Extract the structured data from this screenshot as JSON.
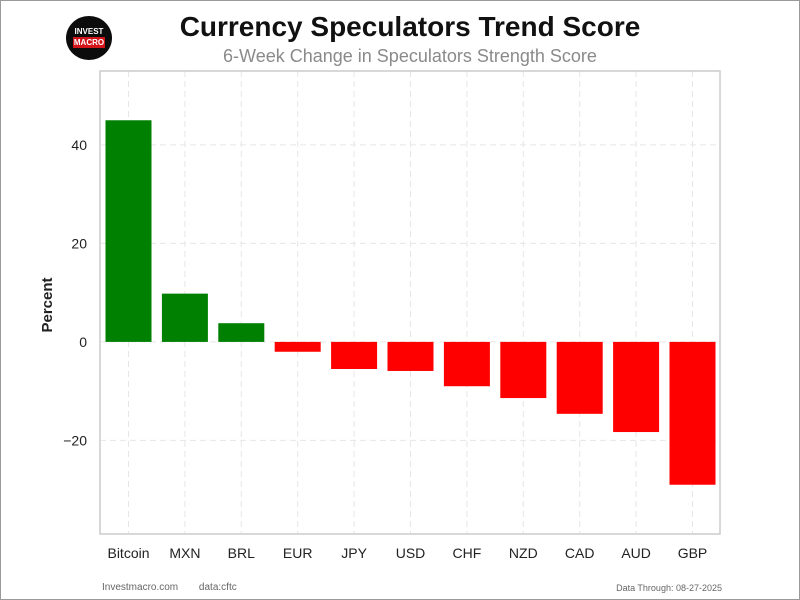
{
  "logo": {
    "line1": "INVEST",
    "line2": "MACRO"
  },
  "footer": {
    "site": "Investmacro.com",
    "source": "data:cftc",
    "data_through": "Data Through: 08-27-2025"
  },
  "colors": {
    "positive": "#008000",
    "negative": "#ff0000",
    "grid": "#e6e6e6",
    "axis_frame": "#cccccc"
  },
  "chart_data": {
    "type": "bar",
    "title": "Currency Speculators Trend Score",
    "subtitle": "6-Week Change in Speculators Strength Score",
    "xlabel": "",
    "ylabel": "Percent",
    "categories": [
      "Bitcoin",
      "MXN",
      "BRL",
      "EUR",
      "JPY",
      "USD",
      "CHF",
      "NZD",
      "CAD",
      "AUD",
      "GBP"
    ],
    "values": [
      45.0,
      9.8,
      3.8,
      -2.0,
      -5.5,
      -5.9,
      -9.0,
      -11.4,
      -14.6,
      -18.3,
      -29.0
    ],
    "ylim": [
      -39,
      55
    ],
    "yticks": [
      40,
      20,
      0,
      -20
    ],
    "ytick_labels": [
      "40",
      "20",
      "0",
      "−20"
    ],
    "grid": true,
    "legend": "none"
  }
}
